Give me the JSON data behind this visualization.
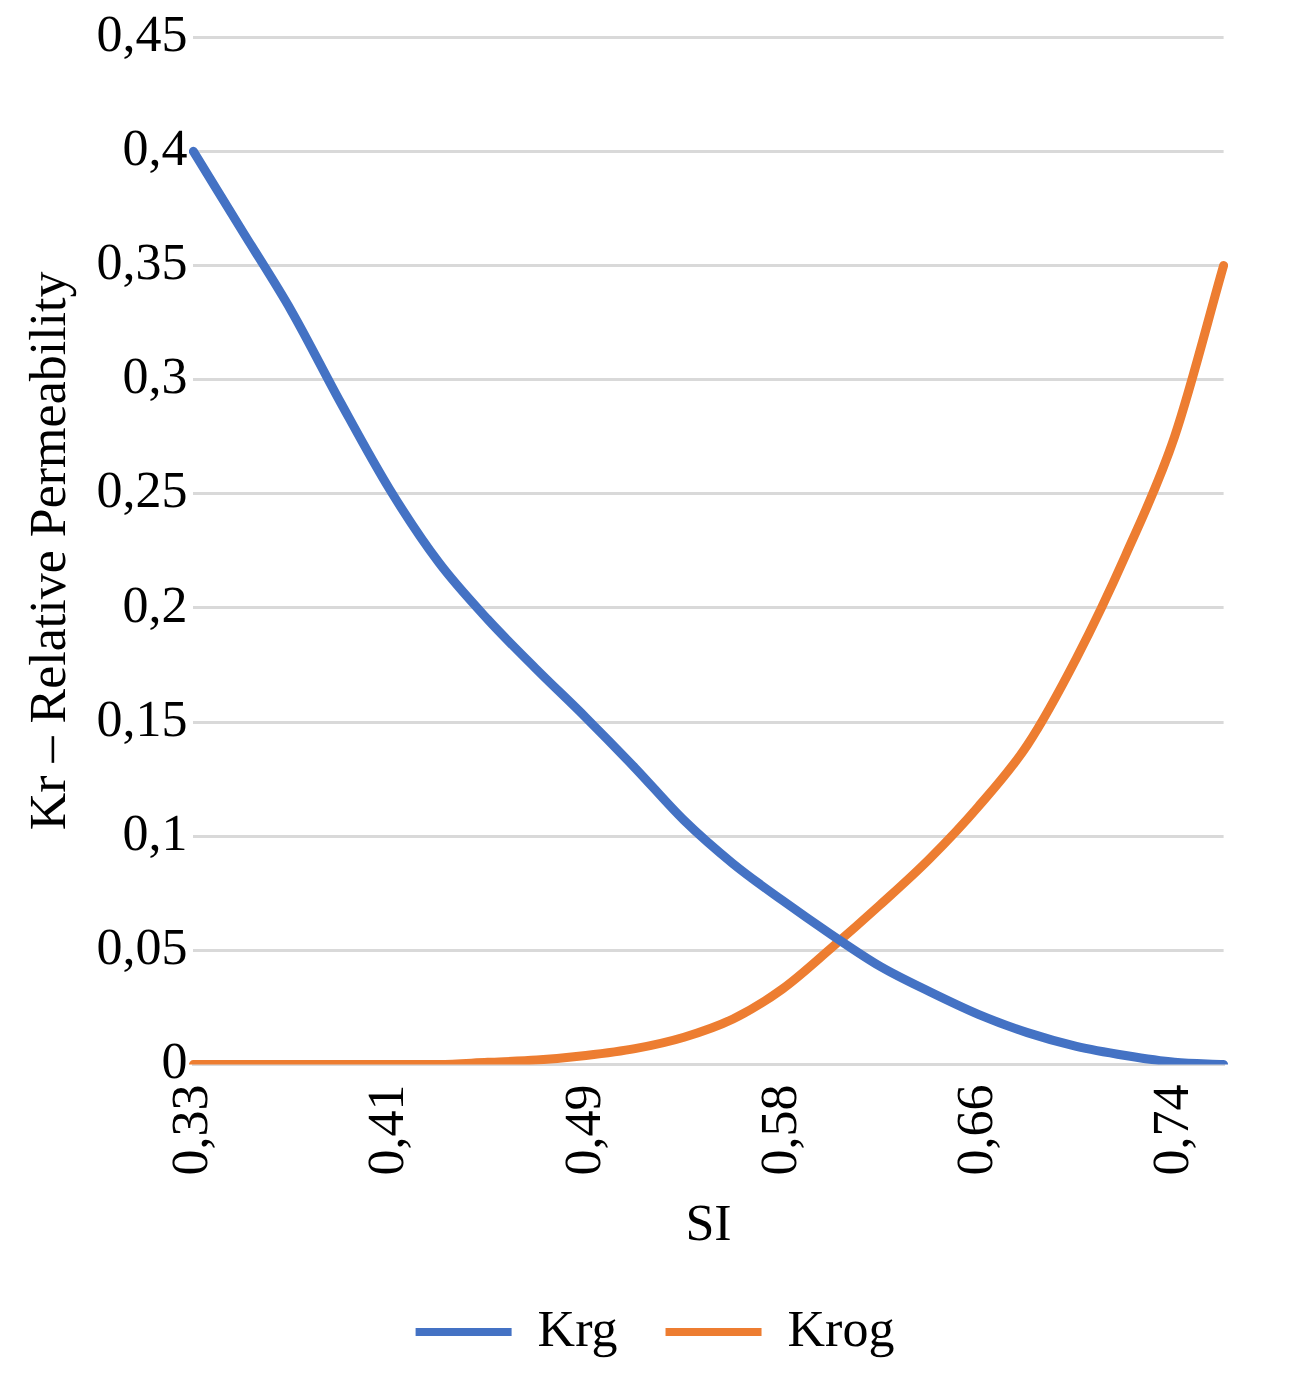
{
  "chart_data": {
    "type": "line",
    "xlabel": "SI",
    "ylabel": "Kr – Relative Permeability",
    "categories": [
      "0,33",
      null,
      null,
      null,
      "0,41",
      null,
      null,
      null,
      "0,49",
      null,
      null,
      null,
      "0,58",
      null,
      null,
      null,
      "0,66",
      null,
      null,
      null,
      "0,74",
      null
    ],
    "series": [
      {
        "name": "Krg",
        "color": "#4472c4",
        "values": [
          0.4,
          0.365,
          0.33,
          0.29,
          0.252,
          0.22,
          0.195,
          0.173,
          0.152,
          0.13,
          0.107,
          0.088,
          0.072,
          0.057,
          0.043,
          0.032,
          0.022,
          0.014,
          0.008,
          0.004,
          0.001,
          0
        ]
      },
      {
        "name": "Krog",
        "color": "#ed7d31",
        "values": [
          0,
          0,
          0,
          0,
          0,
          0,
          0.001,
          0.002,
          0.004,
          0.007,
          0.012,
          0.02,
          0.033,
          0.051,
          0.07,
          0.09,
          0.113,
          0.14,
          0.178,
          0.223,
          0.275,
          0.35
        ]
      }
    ],
    "ylim": [
      0,
      0.45
    ],
    "yticks": [
      {
        "value": 0,
        "label": "0"
      },
      {
        "value": 0.05,
        "label": "0,05"
      },
      {
        "value": 0.1,
        "label": "0,1"
      },
      {
        "value": 0.15,
        "label": "0,15"
      },
      {
        "value": 0.2,
        "label": "0,2"
      },
      {
        "value": 0.25,
        "label": "0,25"
      },
      {
        "value": 0.3,
        "label": "0,3"
      },
      {
        "value": 0.35,
        "label": "0,35"
      },
      {
        "value": 0.4,
        "label": "0,4"
      },
      {
        "value": 0.45,
        "label": "0,45"
      }
    ],
    "grid": "y",
    "legend": "bottom",
    "marker": "none",
    "line_style": "solid"
  }
}
